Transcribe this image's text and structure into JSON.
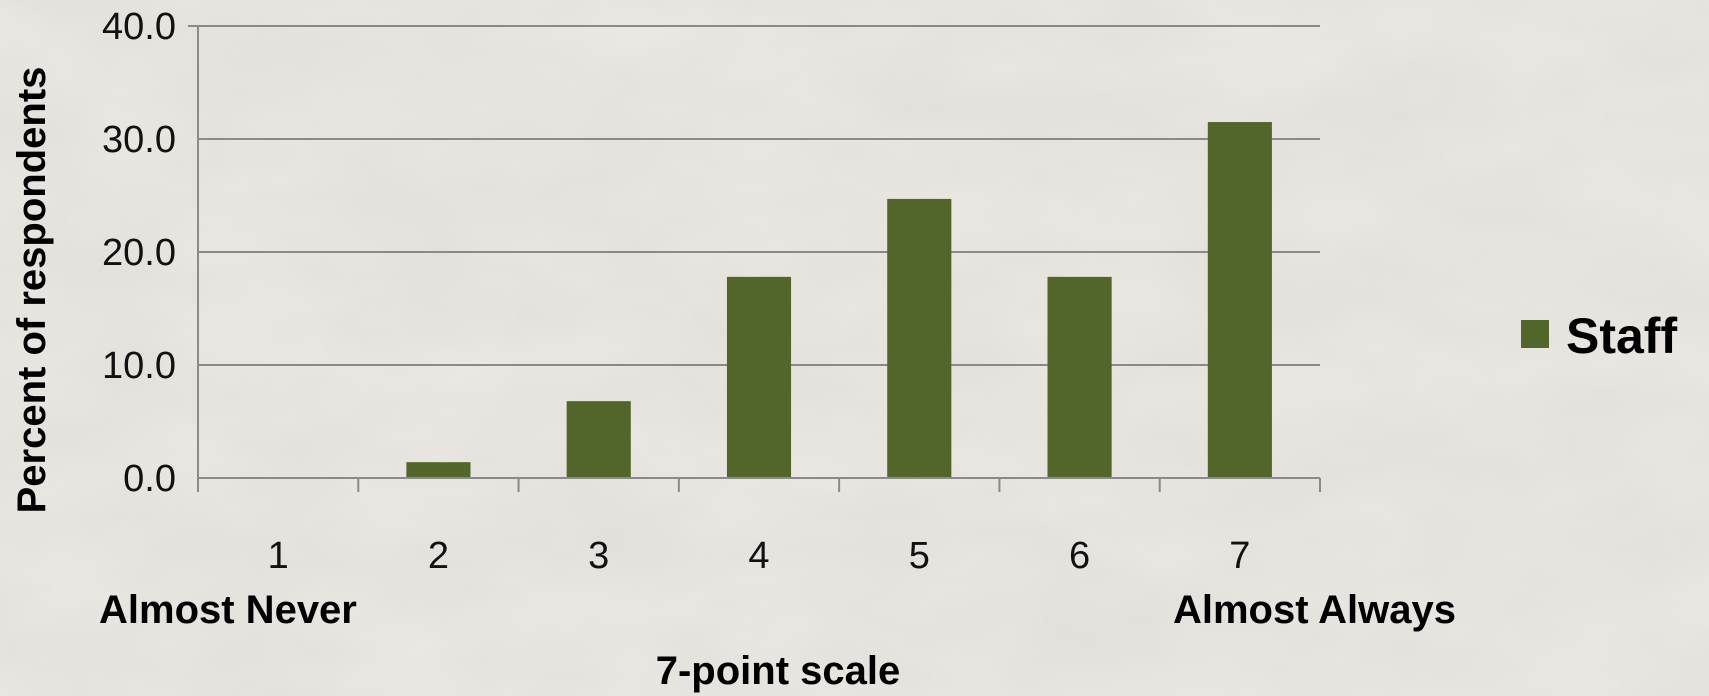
{
  "colors": {
    "bar": "#52652a",
    "gridline": "#8a8a8a",
    "background": "#ece9e4"
  },
  "chart_data": {
    "type": "bar",
    "categories": [
      "1",
      "2",
      "3",
      "4",
      "5",
      "6",
      "7"
    ],
    "series": [
      {
        "name": "Staff",
        "values": [
          0.0,
          1.4,
          6.8,
          17.8,
          24.7,
          17.8,
          31.5
        ]
      }
    ],
    "ylabel": "Percent of respondents",
    "xlabel": "7-point scale",
    "scale_low_label": "Almost Never",
    "scale_high_label": "Almost Always",
    "ylim": [
      0,
      40
    ],
    "yticks": [
      "0.0",
      "10.0",
      "20.0",
      "30.0",
      "40.0"
    ],
    "grid": true,
    "legend_position": "right"
  }
}
